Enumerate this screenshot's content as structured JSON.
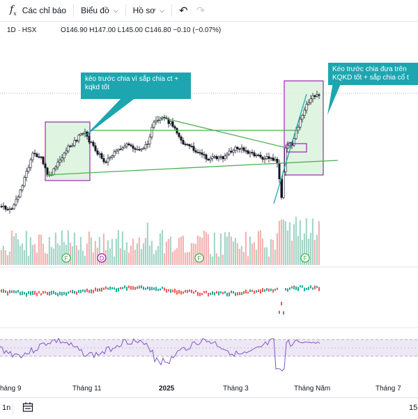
{
  "toolbar": {
    "indicators_label": "Các chỉ báo",
    "chart_type_label": "Biểu đồ",
    "profile_label": "Hồ sơ",
    "formula_icon": "fx-icon",
    "undo_icon": "undo-icon",
    "redo_icon": "redo-icon"
  },
  "legend": {
    "interval": "1D",
    "exchange": "HSX",
    "open": "O146.90",
    "high": "H147.00",
    "low": "L145.00",
    "close": "C146.80",
    "change": "−0.10 (−0.07%)"
  },
  "annotations": {
    "left_callout": "kéo trước chia vì sắp chia ct + kqkd tốt",
    "right_callout": "Kéo trước chia đựa trên KQKD tốt + sắp chia cổ t"
  },
  "markers": [
    "F",
    "D",
    "F",
    "F"
  ],
  "time_axis": [
    "háng 9",
    "Tháng 11",
    "2025",
    "Tháng 3",
    "Tháng Năm",
    "Tháng 7"
  ],
  "bottom_bar": {
    "range_label": "1n",
    "calendar_icon": "calendar-range-icon",
    "right_value": "15"
  },
  "colors": {
    "up": "#26a69a",
    "down": "#ef5350",
    "trendline": "#4caf50",
    "box_fill": "#d9f2dc",
    "box_border": "#9c27b0",
    "callout": "#1da6b0",
    "rsi_line": "#7e57c2"
  }
}
